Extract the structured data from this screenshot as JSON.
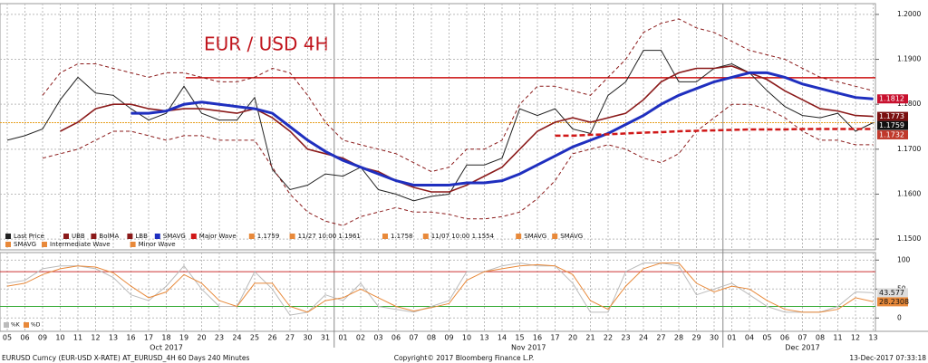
{
  "chart_data": [
    {
      "type": "line",
      "title": "EUR / USD 4H",
      "categories": [
        "05",
        "06",
        "09",
        "10",
        "11",
        "12",
        "13",
        "16",
        "17",
        "18",
        "19",
        "20",
        "23",
        "24",
        "25",
        "26",
        "27",
        "30",
        "31",
        "01",
        "02",
        "03",
        "06",
        "07",
        "08",
        "09",
        "10",
        "13",
        "14",
        "15",
        "16",
        "17",
        "20",
        "21",
        "22",
        "23",
        "24",
        "27",
        "28",
        "29",
        "30",
        "01",
        "04",
        "05",
        "06",
        "07",
        "08",
        "11",
        "12",
        "13"
      ],
      "month_labels": [
        "Oct 2017",
        "Nov 2017",
        "Dec 2017"
      ],
      "ylim": [
        1.1476,
        1.2024
      ],
      "yticks": [
        {
          "value": 1.15,
          "label": "1.1500"
        },
        {
          "value": 1.16,
          "label": "1.1600"
        },
        {
          "value": 1.17,
          "label": "1.1700"
        },
        {
          "value": 1.18,
          "label": "1.1800"
        },
        {
          "value": 1.19,
          "label": "1.1900"
        },
        {
          "value": 1.2,
          "label": "1.2000"
        }
      ],
      "grid": true,
      "series": [
        {
          "name": "Last Price",
          "color": "#222222",
          "width": 1,
          "dash": "",
          "values": [
            1.172,
            1.173,
            1.1745,
            1.181,
            1.186,
            1.1825,
            1.182,
            1.179,
            1.1765,
            1.178,
            1.184,
            1.178,
            1.1765,
            1.1765,
            1.1815,
            1.1655,
            1.161,
            1.162,
            1.1645,
            1.164,
            1.166,
            1.161,
            1.16,
            1.1585,
            1.1595,
            1.16,
            1.1665,
            1.1665,
            1.168,
            1.179,
            1.1775,
            1.179,
            1.1745,
            1.1735,
            1.182,
            1.185,
            1.192,
            1.192,
            1.185,
            1.185,
            1.188,
            1.189,
            1.187,
            1.183,
            1.1795,
            1.1775,
            1.177,
            1.178,
            1.174,
            1.1759
          ]
        },
        {
          "name": "UBB",
          "color": "#8b1a1a",
          "width": 1,
          "dash": "4 3",
          "values": [
            null,
            null,
            1.182,
            1.187,
            1.189,
            1.189,
            1.188,
            1.187,
            1.186,
            1.187,
            1.187,
            1.186,
            1.185,
            1.185,
            1.186,
            1.188,
            1.187,
            1.182,
            1.176,
            1.172,
            1.171,
            1.17,
            1.169,
            1.167,
            1.165,
            1.166,
            1.17,
            1.17,
            1.172,
            1.18,
            1.184,
            1.184,
            1.183,
            1.182,
            1.186,
            1.19,
            1.196,
            1.198,
            1.199,
            1.197,
            1.196,
            1.194,
            1.192,
            1.191,
            1.19,
            1.188,
            1.186,
            1.185,
            1.184,
            1.183
          ]
        },
        {
          "name": "BolMA",
          "color": "#8b1a1a",
          "width": 1.6,
          "dash": "",
          "values": [
            null,
            null,
            null,
            1.174,
            1.176,
            1.179,
            1.18,
            1.18,
            1.179,
            1.1785,
            1.179,
            1.179,
            1.1785,
            1.178,
            1.179,
            1.177,
            1.174,
            1.17,
            1.169,
            1.168,
            1.166,
            1.165,
            1.163,
            1.1615,
            1.1605,
            1.1605,
            1.162,
            1.164,
            1.166,
            1.17,
            1.174,
            1.176,
            1.177,
            1.176,
            1.177,
            1.178,
            1.181,
            1.185,
            1.187,
            1.188,
            1.188,
            1.1885,
            1.187,
            1.1855,
            1.183,
            1.181,
            1.179,
            1.1785,
            1.1775,
            1.1773
          ]
        },
        {
          "name": "LBB",
          "color": "#8b1a1a",
          "width": 1,
          "dash": "4 3",
          "values": [
            null,
            null,
            1.168,
            1.169,
            1.17,
            1.172,
            1.174,
            1.174,
            1.173,
            1.172,
            1.173,
            1.173,
            1.172,
            1.172,
            1.172,
            1.166,
            1.16,
            1.156,
            1.154,
            1.153,
            1.155,
            1.156,
            1.157,
            1.156,
            1.156,
            1.1555,
            1.1545,
            1.1545,
            1.155,
            1.156,
            1.159,
            1.163,
            1.169,
            1.17,
            1.171,
            1.17,
            1.168,
            1.167,
            1.169,
            1.174,
            1.177,
            1.18,
            1.18,
            1.179,
            1.177,
            1.174,
            1.172,
            1.172,
            1.171,
            1.171
          ]
        },
        {
          "name": "SMAVG",
          "color": "#1f2fbf",
          "width": 3,
          "dash": "",
          "values": [
            null,
            null,
            null,
            null,
            null,
            null,
            null,
            1.178,
            1.178,
            1.1785,
            1.18,
            1.1805,
            1.18,
            1.1795,
            1.179,
            1.178,
            1.175,
            1.172,
            1.1695,
            1.1675,
            1.166,
            1.1645,
            1.163,
            1.162,
            1.162,
            1.162,
            1.1625,
            1.1625,
            1.163,
            1.1645,
            1.1665,
            1.1685,
            1.1705,
            1.172,
            1.1735,
            1.1755,
            1.1775,
            1.18,
            1.182,
            1.1835,
            1.185,
            1.186,
            1.187,
            1.187,
            1.186,
            1.1845,
            1.1835,
            1.1825,
            1.1815,
            1.1812
          ]
        },
        {
          "name": "Major Wave",
          "color": "#d01818",
          "width": 2.5,
          "dash": "6 3",
          "values": [
            null,
            null,
            null,
            null,
            null,
            null,
            null,
            null,
            null,
            null,
            null,
            null,
            null,
            null,
            null,
            null,
            null,
            null,
            null,
            null,
            null,
            null,
            null,
            null,
            null,
            null,
            null,
            null,
            null,
            null,
            null,
            1.173,
            1.173,
            1.1732,
            1.1733,
            1.1735,
            1.1737,
            1.1738,
            1.174,
            1.1741,
            1.1742,
            1.1743,
            1.1744,
            1.1744,
            1.1744,
            1.1745,
            1.1745,
            1.1745,
            1.1745,
            1.1745
          ]
        }
      ],
      "legend_extra": [
        "1.1759",
        "11/27 10:00 1.1961",
        "1.1758",
        "11/07 10:00 1.1554",
        "SMAVG",
        "SMAVG",
        "SMAVG",
        "Intermediate Wave",
        "Minor Wave"
      ],
      "hlines": [
        {
          "value": 1.1859,
          "color": "#cc1111"
        },
        {
          "value": 1.1759,
          "color": "#e8a020"
        }
      ],
      "tags": [
        {
          "value": 1.1812,
          "color": "#c8102e"
        },
        {
          "value": 1.1773,
          "color": "#7a1010"
        },
        {
          "value": 1.1759,
          "color": "#111111"
        },
        {
          "value": 1.1732,
          "color": "#c0392b"
        }
      ]
    },
    {
      "type": "line",
      "ylim": [
        -23,
        113
      ],
      "yticks": [
        0,
        50,
        100
      ],
      "series": [
        {
          "name": "%K",
          "color": "#bbbbbb",
          "width": 1,
          "dash": "",
          "values": [
            60,
            65,
            85,
            90,
            90,
            85,
            70,
            40,
            30,
            55,
            90,
            50,
            20,
            20,
            80,
            50,
            5,
            10,
            40,
            30,
            60,
            20,
            15,
            10,
            20,
            30,
            80,
            80,
            90,
            95,
            90,
            90,
            60,
            10,
            10,
            80,
            95,
            95,
            90,
            40,
            50,
            60,
            40,
            20,
            10,
            10,
            10,
            20,
            45,
            43.577
          ]
        },
        {
          "name": "%D",
          "color": "#e8893a",
          "width": 1,
          "dash": "",
          "values": [
            55,
            60,
            75,
            85,
            90,
            88,
            78,
            55,
            35,
            45,
            75,
            60,
            30,
            20,
            60,
            60,
            20,
            10,
            30,
            35,
            50,
            35,
            20,
            12,
            18,
            25,
            65,
            80,
            85,
            90,
            92,
            90,
            75,
            30,
            15,
            55,
            85,
            95,
            95,
            60,
            45,
            55,
            50,
            30,
            15,
            10,
            10,
            15,
            35,
            28.2308
          ]
        }
      ],
      "hlines": [
        {
          "value": 80,
          "color": "#cc3333"
        },
        {
          "value": 20,
          "color": "#33aa33"
        }
      ],
      "tags": [
        {
          "value": 43.577,
          "color": "#dddddd"
        },
        {
          "value": 28.2308,
          "color": "#e8893a"
        }
      ]
    }
  ],
  "footer": {
    "left": "EURUSD Curncy (EUR-USD X-RATE) AT_EURUSD_4H 60 Days 240 Minutes",
    "center": "Copyright© 2017 Bloomberg Finance L.P.",
    "right": "13-Dec-2017 07:33:18"
  }
}
